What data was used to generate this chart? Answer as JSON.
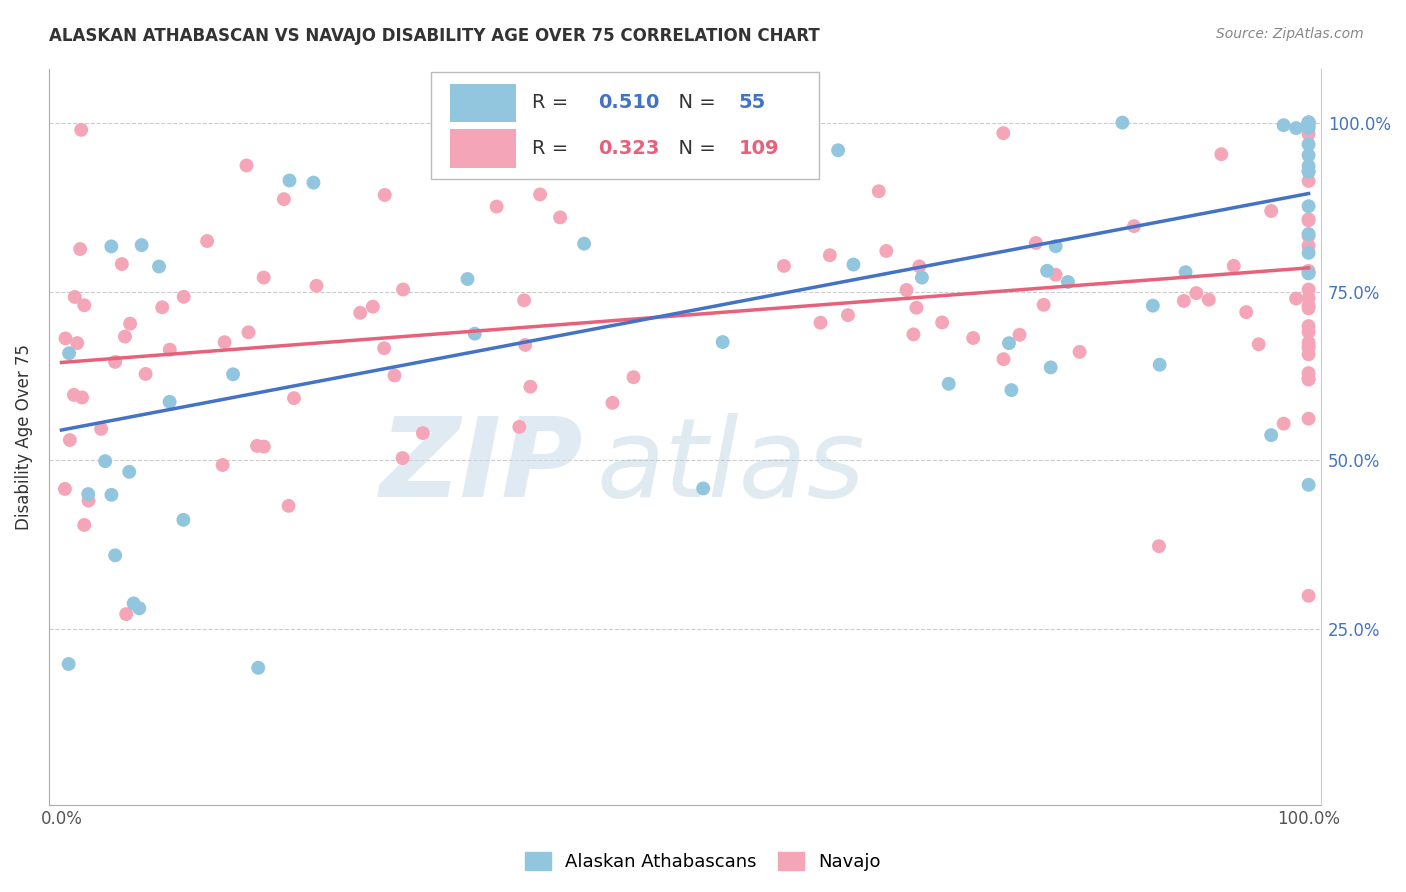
{
  "title": "ALASKAN ATHABASCAN VS NAVAJO DISABILITY AGE OVER 75 CORRELATION CHART",
  "source": "Source: ZipAtlas.com",
  "ylabel": "Disability Age Over 75",
  "blue_color": "#92C5DE",
  "pink_color": "#F4A6B8",
  "blue_line_color": "#4472C4",
  "pink_line_color": "#E8607A",
  "legend_R_blue": "0.510",
  "legend_N_blue": "55",
  "legend_R_pink": "0.323",
  "legend_N_pink": "109",
  "blue_label": "Alaskan Athabascans",
  "pink_label": "Navajo",
  "blue_line_start_y": 0.545,
  "blue_line_end_y": 0.895,
  "pink_line_start_y": 0.645,
  "pink_line_end_y": 0.785,
  "xlim": [
    -0.01,
    1.01
  ],
  "ylim": [
    -0.01,
    1.08
  ],
  "yticks": [
    0.25,
    0.5,
    0.75,
    1.0
  ],
  "ytick_labels": [
    "25.0%",
    "50.0%",
    "75.0%",
    "100.0%"
  ],
  "xticks": [
    0.0,
    1.0
  ],
  "xtick_labels": [
    "0.0%",
    "100.0%"
  ]
}
